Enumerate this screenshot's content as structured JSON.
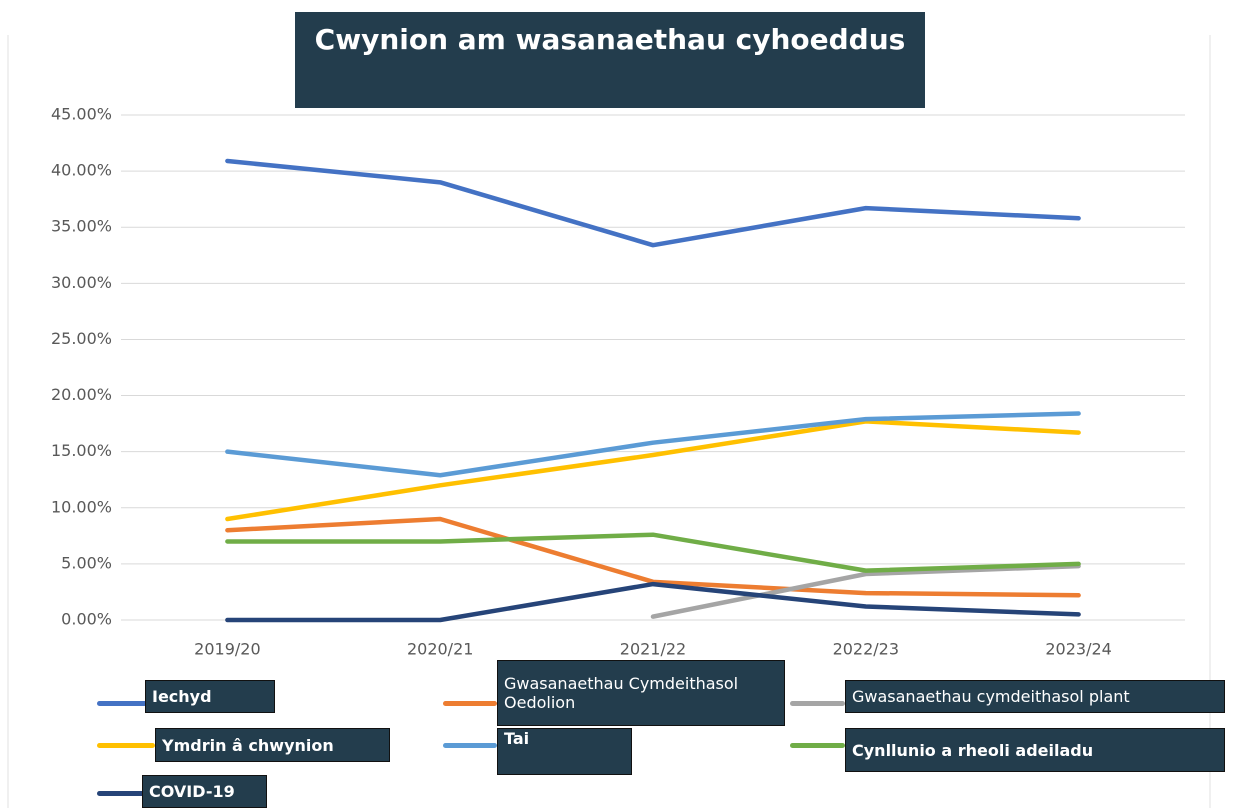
{
  "chart_data": {
    "type": "line",
    "title": "Cwynion am wasanaethau cyhoeddus",
    "categories": [
      "2019/20",
      "2020/21",
      "2021/22",
      "2022/23",
      "2023/24"
    ],
    "series": [
      {
        "name": "Iechyd",
        "color": "#4472c4",
        "values": [
          40.9,
          39.0,
          33.4,
          36.7,
          35.8
        ]
      },
      {
        "name": "Gwasanaethau Cymdeithasol Oedolion",
        "color": "#ed7d31",
        "values": [
          8.0,
          9.0,
          3.4,
          2.4,
          2.2
        ]
      },
      {
        "name": "Gwasanaethau cymdeithasol plant",
        "color": "#a5a5a5",
        "values": [
          null,
          null,
          0.3,
          4.1,
          4.8
        ]
      },
      {
        "name": "Ymdrin â chwynion",
        "color": "#ffc000",
        "values": [
          9.0,
          12.0,
          14.7,
          17.7,
          16.7
        ]
      },
      {
        "name": "Tai",
        "color": "#5b9bd5",
        "values": [
          15.0,
          12.9,
          15.8,
          17.9,
          18.4
        ]
      },
      {
        "name": "Cynllunio a rheoli adeiladu",
        "color": "#70ad47",
        "values": [
          7.0,
          7.0,
          7.6,
          4.4,
          5.0
        ]
      },
      {
        "name": "COVID-19",
        "color": "#264478",
        "values": [
          0,
          0,
          3.2,
          1.2,
          0.5
        ]
      }
    ],
    "ylim": [
      0,
      45
    ],
    "yticks": [
      {
        "value": 0,
        "label": "0.00%"
      },
      {
        "value": 5,
        "label": "5.00%"
      },
      {
        "value": 10,
        "label": "10.00%"
      },
      {
        "value": 15,
        "label": "15.00%"
      },
      {
        "value": 20,
        "label": "20.00%"
      },
      {
        "value": 25,
        "label": "25.00%"
      },
      {
        "value": 30,
        "label": "30.00%"
      },
      {
        "value": 35,
        "label": "35.00%"
      },
      {
        "value": 40,
        "label": "40.00%"
      },
      {
        "value": 45,
        "label": "45.00%"
      }
    ],
    "grid": true
  }
}
